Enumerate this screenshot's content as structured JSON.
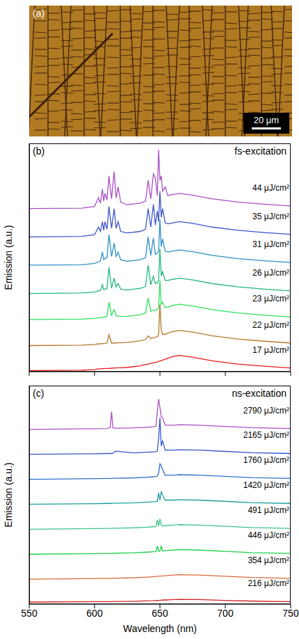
{
  "image": {
    "label": "(a)",
    "scale_bar": "20 μm"
  },
  "chart_data": [
    {
      "type": "line",
      "annotations": [
        "(b)",
        "fs-excitation"
      ],
      "y_label": "Emission (a.u.)",
      "tick_labels": false,
      "xlim": [
        550,
        750
      ],
      "xticks": [
        550,
        600,
        650,
        700,
        750
      ],
      "ylim": [
        0,
        10.5
      ],
      "x": [
        550,
        590,
        600,
        603,
        604.5,
        606,
        607,
        608,
        609.5,
        611,
        613,
        615,
        616.5,
        618,
        620,
        625,
        635,
        639,
        641,
        643,
        645,
        646.5,
        648,
        649,
        650,
        651,
        652,
        654,
        656,
        660,
        665,
        675,
        690,
        710,
        730,
        750
      ],
      "series": [
        {
          "name": "17 μJ/cm²",
          "color": "#e8191c",
          "values": [
            0.05,
            0.07,
            0.1,
            0.13,
            0.13,
            0.14,
            0.14,
            0.15,
            0.15,
            0.15,
            0.16,
            0.17,
            0.17,
            0.18,
            0.18,
            0.2,
            0.27,
            0.33,
            0.35,
            0.38,
            0.41,
            0.43,
            0.45,
            0.47,
            0.49,
            0.51,
            0.53,
            0.57,
            0.62,
            0.7,
            0.75,
            0.67,
            0.5,
            0.35,
            0.25,
            0.17
          ]
        },
        {
          "name": "22 μJ/cm²",
          "color": "#b5772a",
          "values": [
            1.2,
            1.22,
            1.25,
            1.28,
            1.28,
            1.29,
            1.29,
            1.3,
            1.32,
            1.7,
            1.32,
            1.32,
            1.32,
            1.33,
            1.33,
            1.35,
            1.42,
            1.48,
            1.65,
            1.53,
            1.56,
            1.58,
            1.62,
            1.7,
            3.1,
            1.9,
            1.72,
            1.72,
            1.77,
            1.85,
            1.9,
            1.82,
            1.65,
            1.5,
            1.4,
            1.32
          ]
        },
        {
          "name": "23 μJ/cm²",
          "color": "#2ce05a",
          "values": [
            2.4,
            2.42,
            2.45,
            2.48,
            2.48,
            2.5,
            2.5,
            2.52,
            2.55,
            3.2,
            2.6,
            2.85,
            2.58,
            2.56,
            2.54,
            2.55,
            2.62,
            2.7,
            3.4,
            2.78,
            2.82,
            2.82,
            2.86,
            2.95,
            4.2,
            3.1,
            3.2,
            2.95,
            2.97,
            3.05,
            3.1,
            3.02,
            2.85,
            2.7,
            2.6,
            2.52
          ]
        },
        {
          "name": "26 μJ/cm²",
          "color": "#22b87a",
          "values": [
            3.6,
            3.62,
            3.66,
            3.72,
            3.74,
            4.0,
            3.78,
            3.8,
            3.82,
            4.8,
            3.85,
            4.3,
            3.9,
            4.05,
            3.8,
            3.76,
            3.84,
            3.92,
            4.9,
            4.0,
            4.4,
            4.05,
            4.1,
            4.2,
            5.65,
            4.4,
            4.6,
            4.2,
            4.2,
            4.25,
            4.3,
            4.22,
            4.05,
            3.9,
            3.8,
            3.72
          ]
        },
        {
          "name": "31 μJ/cm²",
          "color": "#2a8fc8",
          "values": [
            4.9,
            4.92,
            4.98,
            5.05,
            5.1,
            5.5,
            5.15,
            5.2,
            5.25,
            6.3,
            5.3,
            5.9,
            5.3,
            5.5,
            5.15,
            5.08,
            5.15,
            5.25,
            6.2,
            5.35,
            6.15,
            5.4,
            5.45,
            5.55,
            7.0,
            5.75,
            6.1,
            5.55,
            5.5,
            5.55,
            5.6,
            5.52,
            5.35,
            5.2,
            5.1,
            5.02
          ]
        },
        {
          "name": "35 μJ/cm²",
          "color": "#3f53c9",
          "values": [
            6.2,
            6.22,
            6.3,
            6.65,
            6.45,
            6.9,
            6.5,
            6.9,
            6.55,
            7.6,
            6.6,
            7.5,
            6.6,
            6.9,
            6.45,
            6.38,
            6.45,
            6.55,
            7.5,
            6.65,
            7.7,
            6.75,
            7.4,
            6.9,
            8.3,
            7.1,
            7.5,
            6.85,
            6.8,
            6.85,
            6.9,
            6.82,
            6.65,
            6.5,
            6.4,
            6.32
          ]
        },
        {
          "name": "44 μJ/cm²",
          "color": "#a94fc4",
          "values": [
            7.5,
            7.52,
            7.6,
            8.0,
            7.75,
            8.4,
            7.85,
            8.2,
            7.9,
            9.0,
            7.95,
            9.2,
            8.0,
            8.5,
            7.8,
            7.68,
            7.75,
            7.85,
            8.8,
            7.95,
            9.1,
            8.9,
            8.1,
            10.2,
            8.8,
            9.0,
            8.3,
            8.5,
            8.1,
            8.15,
            8.2,
            8.12,
            7.95,
            7.8,
            7.7,
            7.62
          ]
        }
      ]
    },
    {
      "type": "line",
      "annotations": [
        "(c)",
        "ns-excitation"
      ],
      "y_label": "Emission (a.u.)",
      "x_label": "Wavelength (nm)",
      "tick_labels": "x",
      "xlim": [
        550,
        750
      ],
      "xticks": [
        550,
        600,
        650,
        700,
        750
      ],
      "ylim": [
        0,
        10.5
      ],
      "x": [
        550,
        600,
        610,
        612,
        613,
        614,
        616,
        630,
        640,
        645,
        647,
        648,
        649,
        650,
        651,
        652,
        654,
        660,
        665,
        680,
        700,
        720,
        750
      ],
      "series": [
        {
          "name": "216 μJ/cm²",
          "color": "#d42020",
          "values": [
            0.1,
            0.12,
            0.12,
            0.12,
            0.12,
            0.13,
            0.13,
            0.14,
            0.16,
            0.17,
            0.18,
            0.18,
            0.18,
            0.19,
            0.19,
            0.2,
            0.2,
            0.22,
            0.23,
            0.22,
            0.18,
            0.15,
            0.12
          ]
        },
        {
          "name": "354 μJ/cm²",
          "color": "#d86a3a",
          "values": [
            1.2,
            1.23,
            1.24,
            1.24,
            1.24,
            1.25,
            1.25,
            1.27,
            1.3,
            1.32,
            1.33,
            1.34,
            1.34,
            1.35,
            1.35,
            1.36,
            1.37,
            1.4,
            1.42,
            1.4,
            1.34,
            1.28,
            1.24
          ]
        },
        {
          "name": "446 μJ/cm²",
          "color": "#1fd14a",
          "values": [
            2.4,
            2.43,
            2.44,
            2.44,
            2.44,
            2.45,
            2.45,
            2.47,
            2.5,
            2.52,
            2.53,
            2.8,
            2.55,
            2.55,
            2.8,
            2.56,
            2.57,
            2.6,
            2.62,
            2.6,
            2.54,
            2.48,
            2.44
          ]
        },
        {
          "name": "491 μJ/cm²",
          "color": "#3cc48a",
          "values": [
            3.6,
            3.63,
            3.64,
            3.64,
            3.64,
            3.65,
            3.65,
            3.67,
            3.7,
            3.72,
            3.73,
            4.05,
            3.75,
            4.1,
            3.8,
            3.76,
            3.77,
            3.8,
            3.82,
            3.8,
            3.74,
            3.68,
            3.64
          ]
        },
        {
          "name": "1420 μJ/cm²",
          "color": "#1a9e9e",
          "values": [
            4.8,
            4.83,
            4.84,
            4.84,
            4.84,
            4.85,
            4.85,
            4.87,
            4.9,
            4.92,
            4.93,
            4.95,
            5.35,
            5.0,
            5.4,
            5.25,
            5.0,
            5.0,
            5.02,
            5.0,
            4.94,
            4.88,
            4.84
          ]
        },
        {
          "name": "1760 μJ/cm²",
          "color": "#2f6fc9",
          "values": [
            6.0,
            6.03,
            6.04,
            6.04,
            6.04,
            6.05,
            6.05,
            6.07,
            6.1,
            6.12,
            6.13,
            6.15,
            6.3,
            6.75,
            6.65,
            6.46,
            6.2,
            6.2,
            6.22,
            6.2,
            6.14,
            6.08,
            6.04
          ]
        },
        {
          "name": "2165 μJ/cm²",
          "color": "#3355cc",
          "values": [
            7.2,
            7.23,
            7.24,
            7.24,
            7.24,
            7.25,
            7.35,
            7.27,
            7.3,
            7.32,
            7.33,
            7.36,
            7.95,
            8.95,
            7.6,
            7.86,
            7.4,
            7.4,
            7.42,
            7.4,
            7.34,
            7.28,
            7.24
          ]
        },
        {
          "name": "2790 μJ/cm²",
          "color": "#a950c0",
          "values": [
            8.4,
            8.43,
            8.44,
            8.5,
            9.25,
            8.48,
            8.45,
            8.47,
            8.5,
            8.52,
            8.55,
            9.25,
            9.85,
            9.45,
            9.0,
            8.95,
            8.6,
            8.6,
            8.62,
            8.6,
            8.54,
            8.48,
            8.44
          ]
        }
      ]
    }
  ]
}
